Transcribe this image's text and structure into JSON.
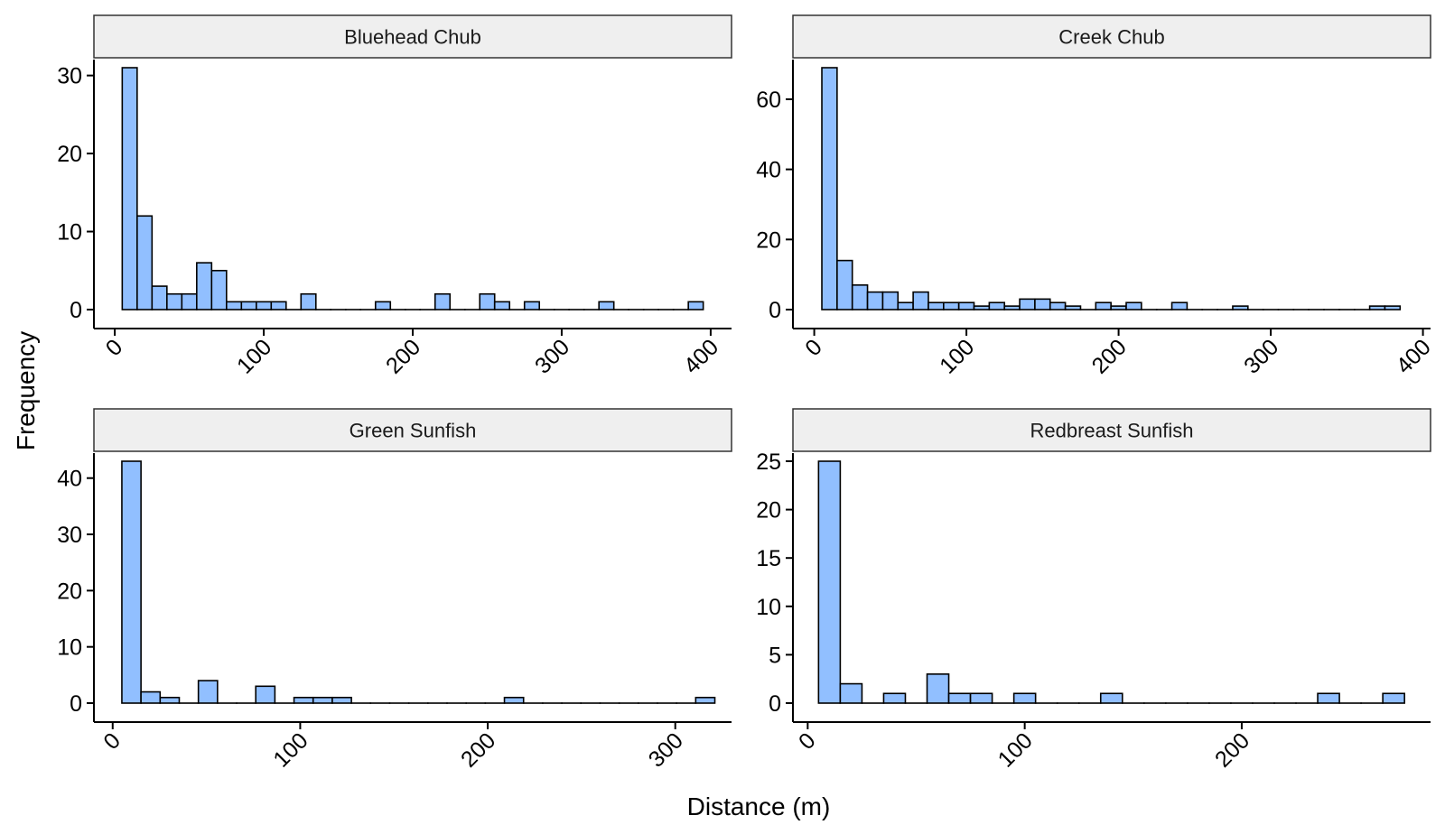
{
  "xlabel": "Distance (m)",
  "ylabel": "Frequency",
  "colors": {
    "bar_fill": "#91bfff",
    "bar_stroke": "#000000",
    "strip_fill": "#efefef"
  },
  "chart_data": [
    {
      "type": "bar",
      "title": "Bluehead Chub",
      "xlim": [
        -14,
        414
      ],
      "ylim": [
        0,
        31
      ],
      "xticks": [
        "0",
        "100",
        "200",
        "300",
        "400"
      ],
      "yticks": [
        "0",
        "10",
        "20",
        "30"
      ],
      "binwidth": 10,
      "bins": [
        {
          "x": 10,
          "y": 31
        },
        {
          "x": 20,
          "y": 12
        },
        {
          "x": 30,
          "y": 3
        },
        {
          "x": 40,
          "y": 2
        },
        {
          "x": 50,
          "y": 2
        },
        {
          "x": 60,
          "y": 6
        },
        {
          "x": 70,
          "y": 5
        },
        {
          "x": 80,
          "y": 1
        },
        {
          "x": 90,
          "y": 1
        },
        {
          "x": 100,
          "y": 1
        },
        {
          "x": 110,
          "y": 1
        },
        {
          "x": 120,
          "y": 0
        },
        {
          "x": 130,
          "y": 2
        },
        {
          "x": 140,
          "y": 0
        },
        {
          "x": 150,
          "y": 0
        },
        {
          "x": 160,
          "y": 0
        },
        {
          "x": 170,
          "y": 0
        },
        {
          "x": 180,
          "y": 1
        },
        {
          "x": 190,
          "y": 0
        },
        {
          "x": 200,
          "y": 0
        },
        {
          "x": 210,
          "y": 0
        },
        {
          "x": 220,
          "y": 2
        },
        {
          "x": 230,
          "y": 0
        },
        {
          "x": 240,
          "y": 0
        },
        {
          "x": 250,
          "y": 2
        },
        {
          "x": 260,
          "y": 1
        },
        {
          "x": 270,
          "y": 0
        },
        {
          "x": 280,
          "y": 1
        },
        {
          "x": 290,
          "y": 0
        },
        {
          "x": 300,
          "y": 0
        },
        {
          "x": 310,
          "y": 0
        },
        {
          "x": 320,
          "y": 0
        },
        {
          "x": 330,
          "y": 1
        },
        {
          "x": 340,
          "y": 0
        },
        {
          "x": 350,
          "y": 0
        },
        {
          "x": 360,
          "y": 0
        },
        {
          "x": 370,
          "y": 0
        },
        {
          "x": 380,
          "y": 0
        },
        {
          "x": 390,
          "y": 1
        }
      ]
    },
    {
      "type": "bar",
      "title": "Creek Chub",
      "xlim": [
        -14,
        405
      ],
      "ylim": [
        0,
        69
      ],
      "xticks": [
        "0",
        "100",
        "200",
        "300",
        "400"
      ],
      "yticks": [
        "0",
        "20",
        "40",
        "60"
      ],
      "binwidth": 10,
      "bins": [
        {
          "x": 10,
          "y": 69
        },
        {
          "x": 20,
          "y": 14
        },
        {
          "x": 30,
          "y": 7
        },
        {
          "x": 40,
          "y": 5
        },
        {
          "x": 50,
          "y": 5
        },
        {
          "x": 60,
          "y": 2
        },
        {
          "x": 70,
          "y": 5
        },
        {
          "x": 80,
          "y": 2
        },
        {
          "x": 90,
          "y": 2
        },
        {
          "x": 100,
          "y": 2
        },
        {
          "x": 110,
          "y": 1
        },
        {
          "x": 120,
          "y": 2
        },
        {
          "x": 130,
          "y": 1
        },
        {
          "x": 140,
          "y": 3
        },
        {
          "x": 150,
          "y": 3
        },
        {
          "x": 160,
          "y": 2
        },
        {
          "x": 170,
          "y": 1
        },
        {
          "x": 180,
          "y": 0
        },
        {
          "x": 190,
          "y": 2
        },
        {
          "x": 200,
          "y": 1
        },
        {
          "x": 210,
          "y": 2
        },
        {
          "x": 220,
          "y": 0
        },
        {
          "x": 230,
          "y": 0
        },
        {
          "x": 240,
          "y": 2
        },
        {
          "x": 250,
          "y": 0
        },
        {
          "x": 260,
          "y": 0
        },
        {
          "x": 270,
          "y": 0
        },
        {
          "x": 280,
          "y": 1
        },
        {
          "x": 290,
          "y": 0
        },
        {
          "x": 300,
          "y": 0
        },
        {
          "x": 310,
          "y": 0
        },
        {
          "x": 320,
          "y": 0
        },
        {
          "x": 330,
          "y": 0
        },
        {
          "x": 340,
          "y": 0
        },
        {
          "x": 350,
          "y": 0
        },
        {
          "x": 360,
          "y": 0
        },
        {
          "x": 370,
          "y": 1
        },
        {
          "x": 380,
          "y": 1
        }
      ]
    },
    {
      "type": "bar",
      "title": "Green Sunfish",
      "xlim": [
        -10,
        330
      ],
      "ylim": [
        0,
        43
      ],
      "xticks": [
        "0",
        "100",
        "200",
        "300"
      ],
      "yticks": [
        "0",
        "10",
        "20",
        "30",
        "40"
      ],
      "binwidth": 10.2,
      "bins": [
        {
          "x": 10,
          "y": 43
        },
        {
          "x": 20.2,
          "y": 2
        },
        {
          "x": 30.4,
          "y": 1
        },
        {
          "x": 40.6,
          "y": 0
        },
        {
          "x": 50.8,
          "y": 4
        },
        {
          "x": 61,
          "y": 0
        },
        {
          "x": 71.2,
          "y": 0
        },
        {
          "x": 81.4,
          "y": 3
        },
        {
          "x": 91.6,
          "y": 0
        },
        {
          "x": 101.8,
          "y": 1
        },
        {
          "x": 112,
          "y": 1
        },
        {
          "x": 122.2,
          "y": 1
        },
        {
          "x": 132.4,
          "y": 0
        },
        {
          "x": 142.6,
          "y": 0
        },
        {
          "x": 152.8,
          "y": 0
        },
        {
          "x": 163,
          "y": 0
        },
        {
          "x": 173.2,
          "y": 0
        },
        {
          "x": 183.4,
          "y": 0
        },
        {
          "x": 193.6,
          "y": 0
        },
        {
          "x": 203.8,
          "y": 0
        },
        {
          "x": 214,
          "y": 1
        },
        {
          "x": 224.2,
          "y": 0
        },
        {
          "x": 234.4,
          "y": 0
        },
        {
          "x": 244.6,
          "y": 0
        },
        {
          "x": 254.8,
          "y": 0
        },
        {
          "x": 265,
          "y": 0
        },
        {
          "x": 275.2,
          "y": 0
        },
        {
          "x": 285.4,
          "y": 0
        },
        {
          "x": 295.6,
          "y": 0
        },
        {
          "x": 305.8,
          "y": 0
        },
        {
          "x": 316,
          "y": 1
        }
      ]
    },
    {
      "type": "bar",
      "title": "Redbreast Sunfish",
      "xlim": [
        -6.8,
        287
      ],
      "ylim": [
        0,
        25
      ],
      "xticks": [
        "0",
        "100",
        "200"
      ],
      "yticks": [
        "0",
        "5",
        "10",
        "15",
        "20",
        "25"
      ],
      "binwidth": 10,
      "bins": [
        {
          "x": 10,
          "y": 25
        },
        {
          "x": 20,
          "y": 2
        },
        {
          "x": 30,
          "y": 0
        },
        {
          "x": 40,
          "y": 1
        },
        {
          "x": 50,
          "y": 0
        },
        {
          "x": 60,
          "y": 3
        },
        {
          "x": 70,
          "y": 1
        },
        {
          "x": 80,
          "y": 1
        },
        {
          "x": 90,
          "y": 0
        },
        {
          "x": 100,
          "y": 1
        },
        {
          "x": 110,
          "y": 0
        },
        {
          "x": 120,
          "y": 0
        },
        {
          "x": 130,
          "y": 0
        },
        {
          "x": 140,
          "y": 1
        },
        {
          "x": 150,
          "y": 0
        },
        {
          "x": 160,
          "y": 0
        },
        {
          "x": 170,
          "y": 0
        },
        {
          "x": 180,
          "y": 0
        },
        {
          "x": 190,
          "y": 0
        },
        {
          "x": 200,
          "y": 0
        },
        {
          "x": 210,
          "y": 0
        },
        {
          "x": 220,
          "y": 0
        },
        {
          "x": 230,
          "y": 0
        },
        {
          "x": 240,
          "y": 1
        },
        {
          "x": 250,
          "y": 0
        },
        {
          "x": 260,
          "y": 0
        },
        {
          "x": 270,
          "y": 1
        }
      ]
    }
  ]
}
